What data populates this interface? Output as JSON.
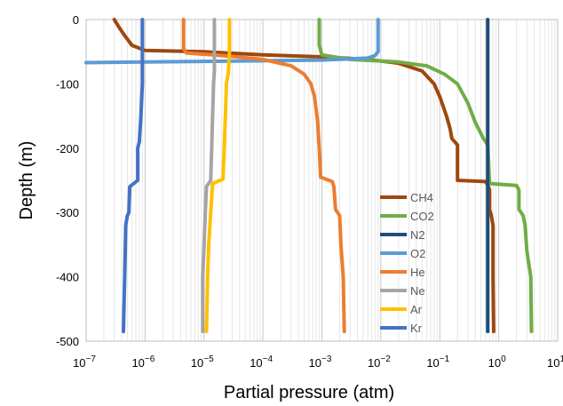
{
  "chart_data": {
    "type": "line",
    "xlabel": "Partial pressure (atm)",
    "ylabel": "Depth (m)",
    "xscale": "log",
    "xlim": [
      1e-07,
      10
    ],
    "ylim": [
      -500,
      0
    ],
    "grid": "vertical minor and major",
    "legend_position": "lower-right",
    "x_tick_labels": [
      {
        "value": 1e-07,
        "base": "10",
        "exp": "−7"
      },
      {
        "value": 1e-06,
        "base": "10",
        "exp": "−6"
      },
      {
        "value": 1e-05,
        "base": "10",
        "exp": "−5"
      },
      {
        "value": 0.0001,
        "base": "10",
        "exp": "−4"
      },
      {
        "value": 0.001,
        "base": "10",
        "exp": "−3"
      },
      {
        "value": 0.01,
        "base": "10",
        "exp": "−2"
      },
      {
        "value": 0.1,
        "base": "10",
        "exp": "−1"
      },
      {
        "value": 1,
        "base": "10",
        "exp": "0"
      },
      {
        "value": 10,
        "base": "10",
        "exp": "1"
      }
    ],
    "y_tick_labels": [
      {
        "value": 0,
        "label": "0"
      },
      {
        "value": -100,
        "label": "-100"
      },
      {
        "value": -200,
        "label": "-200"
      },
      {
        "value": -300,
        "label": "-300"
      },
      {
        "value": -400,
        "label": "-400"
      },
      {
        "value": -500,
        "label": "-500"
      }
    ],
    "series": [
      {
        "name": "CH4",
        "color": "#9E480E",
        "points": [
          [
            3e-07,
            0
          ],
          [
            3.5e-07,
            -10
          ],
          [
            4.5e-07,
            -25
          ],
          [
            6e-07,
            -40
          ],
          [
            1e-06,
            -48
          ],
          [
            1e-05,
            -50
          ],
          [
            0.0001,
            -55
          ],
          [
            0.001,
            -58
          ],
          [
            0.006,
            -62
          ],
          [
            0.02,
            -68
          ],
          [
            0.05,
            -80
          ],
          [
            0.08,
            -100
          ],
          [
            0.1,
            -120
          ],
          [
            0.13,
            -150
          ],
          [
            0.15,
            -170
          ],
          [
            0.16,
            -185
          ],
          [
            0.2,
            -195
          ],
          [
            0.2,
            -230
          ],
          [
            0.2,
            -250
          ],
          [
            0.6,
            -252
          ],
          [
            0.66,
            -258
          ],
          [
            0.7,
            -265
          ],
          [
            0.7,
            -295
          ],
          [
            0.75,
            -305
          ],
          [
            0.8,
            -320
          ],
          [
            0.8,
            -400
          ],
          [
            0.82,
            -485
          ]
        ]
      },
      {
        "name": "CO2",
        "color": "#70AD47",
        "points": [
          [
            0.0009,
            0
          ],
          [
            0.0009,
            -40
          ],
          [
            0.001,
            -55
          ],
          [
            0.003,
            -62
          ],
          [
            0.02,
            -66
          ],
          [
            0.06,
            -72
          ],
          [
            0.12,
            -85
          ],
          [
            0.2,
            -100
          ],
          [
            0.3,
            -130
          ],
          [
            0.4,
            -160
          ],
          [
            0.55,
            -185
          ],
          [
            0.65,
            -195
          ],
          [
            0.7,
            -255
          ],
          [
            2.0,
            -258
          ],
          [
            2.2,
            -265
          ],
          [
            2.2,
            -295
          ],
          [
            2.6,
            -305
          ],
          [
            2.8,
            -320
          ],
          [
            3.0,
            -360
          ],
          [
            3.5,
            -400
          ],
          [
            3.6,
            -485
          ]
        ]
      },
      {
        "name": "N2",
        "color": "#1F4E79",
        "points": [
          [
            0.65,
            0
          ],
          [
            0.65,
            -100
          ],
          [
            0.65,
            -300
          ],
          [
            0.65,
            -485
          ]
        ]
      },
      {
        "name": "O2",
        "color": "#5B9BD5",
        "points": [
          [
            0.009,
            0
          ],
          [
            0.009,
            -50
          ],
          [
            0.008,
            -56
          ],
          [
            0.006,
            -60
          ],
          [
            0.001,
            -63
          ],
          [
            1e-05,
            -65
          ],
          [
            1e-07,
            -67
          ]
        ]
      },
      {
        "name": "He",
        "color": "#ED7D31",
        "points": [
          [
            4.5e-06,
            0
          ],
          [
            4.5e-06,
            -45
          ],
          [
            5e-06,
            -52
          ],
          [
            2e-05,
            -56
          ],
          [
            0.0001,
            -62
          ],
          [
            0.0003,
            -72
          ],
          [
            0.0005,
            -85
          ],
          [
            0.00065,
            -100
          ],
          [
            0.00075,
            -120
          ],
          [
            0.00085,
            -160
          ],
          [
            0.0009,
            -200
          ],
          [
            0.00095,
            -245
          ],
          [
            0.0015,
            -252
          ],
          [
            0.0016,
            -260
          ],
          [
            0.0017,
            -295
          ],
          [
            0.002,
            -305
          ],
          [
            0.0021,
            -350
          ],
          [
            0.0023,
            -400
          ],
          [
            0.0024,
            -485
          ]
        ]
      },
      {
        "name": "Ne",
        "color": "#A5A5A5",
        "points": [
          [
            1.5e-05,
            0
          ],
          [
            1.5e-05,
            -50
          ],
          [
            1.5e-05,
            -80
          ],
          [
            1.45e-05,
            -100
          ],
          [
            1.4e-05,
            -150
          ],
          [
            1.35e-05,
            -200
          ],
          [
            1.3e-05,
            -250
          ],
          [
            1.1e-05,
            -260
          ],
          [
            1.05e-05,
            -300
          ],
          [
            1e-05,
            -350
          ],
          [
            9.5e-06,
            -400
          ],
          [
            9.5e-06,
            -485
          ]
        ]
      },
      {
        "name": "Ar",
        "color": "#FFC000",
        "points": [
          [
            2.7e-05,
            0
          ],
          [
            2.7e-05,
            -50
          ],
          [
            2.6e-05,
            -80
          ],
          [
            2.4e-05,
            -100
          ],
          [
            2.3e-05,
            -150
          ],
          [
            2.2e-05,
            -200
          ],
          [
            2.1e-05,
            -248
          ],
          [
            1.4e-05,
            -255
          ],
          [
            1.3e-05,
            -300
          ],
          [
            1.2e-05,
            -350
          ],
          [
            1.15e-05,
            -400
          ],
          [
            1.1e-05,
            -485
          ]
        ]
      },
      {
        "name": "Kr",
        "color": "#4472C4",
        "points": [
          [
            9e-07,
            0
          ],
          [
            9e-07,
            -50
          ],
          [
            9e-07,
            -100
          ],
          [
            8.5e-07,
            -150
          ],
          [
            8e-07,
            -190
          ],
          [
            7.5e-07,
            -200
          ],
          [
            7.5e-07,
            -250
          ],
          [
            5.5e-07,
            -260
          ],
          [
            5.3e-07,
            -300
          ],
          [
            5e-07,
            -305
          ],
          [
            4.7e-07,
            -320
          ],
          [
            4.5e-07,
            -400
          ],
          [
            4.3e-07,
            -485
          ]
        ]
      }
    ]
  }
}
